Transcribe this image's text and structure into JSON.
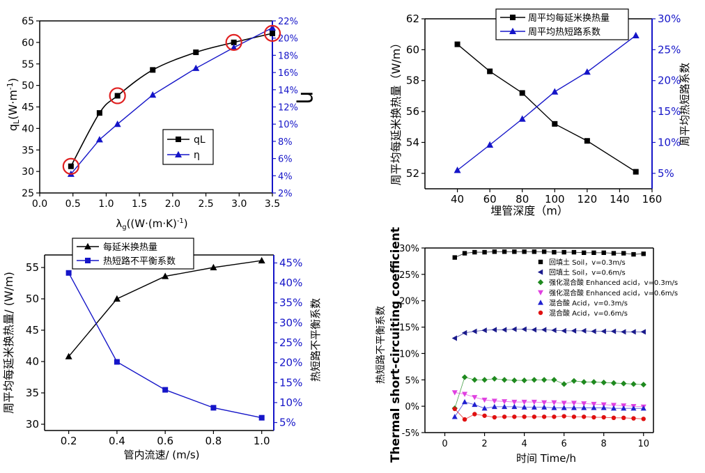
{
  "colors": {
    "black": "#000000",
    "blue": "#1515c8",
    "grid": "#000000",
    "red_circle": "#e02020"
  },
  "charts": [
    {
      "type": "line",
      "xlabel": "λg((W·(m·K)-1)",
      "ylabel_left": "qL(W·m-1)",
      "ylabel_right": "η",
      "xlim": [
        0.0,
        3.5
      ],
      "ylim_left": [
        25,
        65
      ],
      "ylim_right": [
        2,
        22
      ],
      "xticks": [
        "0.0",
        "0.5",
        "1.0",
        "1.5",
        "2.0",
        "2.5",
        "3.0",
        "3.5"
      ],
      "yticks_left": [
        "25",
        "30",
        "35",
        "40",
        "45",
        "50",
        "55",
        "60",
        "65"
      ],
      "yticks_right": [
        "2%",
        "4%",
        "6%",
        "8%",
        "10%",
        "12%",
        "14%",
        "16%",
        "18%",
        "20%",
        "22%"
      ],
      "legend": [
        "qL",
        "η"
      ],
      "series": [
        {
          "name": "qL",
          "axis": "left",
          "color": "#000000",
          "marker": "square",
          "x": [
            0.47,
            0.9,
            1.17,
            1.7,
            2.35,
            2.92,
            3.5
          ],
          "y": [
            31.2,
            43.6,
            47.6,
            53.6,
            57.7,
            60.0,
            62.1
          ]
        },
        {
          "name": "η",
          "axis": "right",
          "color": "#1515c8",
          "marker": "triangle",
          "x": [
            0.47,
            0.9,
            1.17,
            1.7,
            2.35,
            2.92,
            3.5
          ],
          "y": [
            4.2,
            8.2,
            10.0,
            13.4,
            16.5,
            18.9,
            21.2
          ]
        }
      ],
      "highlight_x": [
        0.47,
        1.17,
        2.92,
        3.5
      ],
      "highlight_y": [
        31.2,
        47.6,
        60.0,
        62.1
      ]
    },
    {
      "type": "line",
      "xlabel": "埋管深度（m）",
      "ylabel_left": "周平均每延米换热量（W/m）",
      "ylabel_right": "周平均热短路系数",
      "xlim": [
        20,
        160
      ],
      "ylim_left": [
        51,
        62
      ],
      "ylim_right": [
        2.5,
        30
      ],
      "xticks": [
        "40",
        "60",
        "80",
        "100",
        "120",
        "140",
        "160"
      ],
      "yticks_left": [
        "52",
        "54",
        "56",
        "58",
        "60",
        "62"
      ],
      "yticks_right": [
        "5%",
        "10%",
        "15%",
        "20%",
        "25%",
        "30%"
      ],
      "legend": [
        "周平均每延米换热量",
        "周平均热短路系数"
      ],
      "series": [
        {
          "name": "周平均每延米换热量",
          "axis": "left",
          "color": "#000000",
          "marker": "square",
          "x": [
            40,
            60,
            80,
            100,
            120,
            150
          ],
          "y": [
            60.35,
            58.6,
            57.2,
            55.2,
            54.1,
            52.1
          ]
        },
        {
          "name": "周平均热短路系数",
          "axis": "right",
          "color": "#1515c8",
          "marker": "triangle",
          "x": [
            40,
            60,
            80,
            100,
            120,
            150
          ],
          "y": [
            5.5,
            9.6,
            13.8,
            18.2,
            21.4,
            27.3
          ]
        }
      ]
    },
    {
      "type": "line",
      "xlabel": "管内流速/ (m/s)",
      "ylabel_left": "周平均每延米换热量/ (W/m)",
      "ylabel_right": "热短路不平衡系数",
      "xlim": [
        0.1,
        1.05
      ],
      "ylim_left": [
        29,
        57
      ],
      "ylim_right": [
        3,
        47
      ],
      "xticks": [
        "0.2",
        "0.4",
        "0.6",
        "0.8",
        "1.0"
      ],
      "yticks_left": [
        "30",
        "35",
        "40",
        "45",
        "50",
        "55"
      ],
      "yticks_right": [
        "5%",
        "10%",
        "15%",
        "20%",
        "25%",
        "30%",
        "35%",
        "40%",
        "45%"
      ],
      "legend": [
        "每延米换热量",
        "热短路不平衡系数"
      ],
      "series": [
        {
          "name": "每延米换热量",
          "axis": "left",
          "color": "#000000",
          "marker": "triangle",
          "x": [
            0.2,
            0.4,
            0.6,
            0.8,
            1.0
          ],
          "y": [
            40.8,
            50.0,
            53.6,
            55.0,
            56.1
          ]
        },
        {
          "name": "热短路不平衡系数",
          "axis": "right",
          "color": "#1515c8",
          "marker": "square",
          "x": [
            0.2,
            0.4,
            0.6,
            0.8,
            1.0
          ],
          "y": [
            42.5,
            20.2,
            13.2,
            8.7,
            6.2
          ]
        }
      ]
    },
    {
      "type": "scatter",
      "xlabel": "时间 Time/h",
      "ylabel_outer": "Thermal short-circuiting coefficient",
      "ylabel_inner": "热短路不平衡系数",
      "xlim": [
        -1.0,
        10.5
      ],
      "ylim_left": [
        -5,
        30
      ],
      "xticks": [
        "0",
        "2",
        "4",
        "6",
        "8",
        "10"
      ],
      "yticks_left": [
        "-5%",
        "0%",
        "5%",
        "10%",
        "15%",
        "20%",
        "25%",
        "30%"
      ],
      "legend_position": "top-right",
      "series": [
        {
          "name": "回填土 Soil，v=0.3m/s",
          "color": "#000000",
          "marker": "square",
          "x": [
            0.5,
            1,
            1.5,
            2,
            2.5,
            3,
            3.5,
            4,
            4.5,
            5,
            5.5,
            6,
            6.5,
            7,
            7.5,
            8,
            8.5,
            9,
            9.5,
            10
          ],
          "y": [
            28.2,
            29.0,
            29.2,
            29.2,
            29.3,
            29.3,
            29.3,
            29.3,
            29.3,
            29.3,
            29.2,
            29.2,
            29.2,
            29.1,
            29.1,
            29.1,
            29.0,
            29.0,
            28.8,
            28.9
          ]
        },
        {
          "name": "回填土 Soil，v=0.6m/s",
          "color": "#1a1a8c",
          "marker": "triangle-left",
          "x": [
            0.5,
            1,
            1.5,
            2,
            2.5,
            3,
            3.5,
            4,
            4.5,
            5,
            5.5,
            6,
            6.5,
            7,
            7.5,
            8,
            8.5,
            9,
            9.5,
            10
          ],
          "y": [
            12.9,
            13.9,
            14.2,
            14.4,
            14.5,
            14.5,
            14.6,
            14.6,
            14.5,
            14.5,
            14.4,
            14.3,
            14.3,
            14.3,
            14.2,
            14.2,
            14.2,
            14.1,
            14.1,
            14.1
          ]
        },
        {
          "name": "强化混合酸 Enhanced acid，v=0.3m/s",
          "color": "#1f8a1f",
          "marker": "diamond",
          "x": [
            0.5,
            1,
            1.5,
            2,
            2.5,
            3,
            3.5,
            4,
            4.5,
            5,
            5.5,
            6,
            6.5,
            7,
            7.5,
            8,
            8.5,
            9,
            9.5,
            10
          ],
          "y": [
            -0.4,
            5.5,
            5.0,
            5.0,
            5.2,
            5.0,
            4.9,
            4.9,
            5.0,
            5.0,
            5.0,
            4.2,
            4.8,
            4.6,
            4.6,
            4.5,
            4.4,
            4.3,
            4.2,
            4.1
          ]
        },
        {
          "name": "强化混合酸 Enhanced acid，v=0.6m/s",
          "color": "#e040e0",
          "marker": "triangle-down",
          "x": [
            0.5,
            1,
            1.5,
            2,
            2.5,
            3,
            3.5,
            4,
            4.5,
            5,
            5.5,
            6,
            6.5,
            7,
            7.5,
            8,
            8.5,
            9,
            9.5,
            10
          ],
          "y": [
            2.6,
            2.3,
            1.7,
            1.2,
            1.0,
            0.9,
            0.8,
            0.8,
            0.8,
            0.7,
            0.7,
            0.6,
            0.6,
            0.5,
            0.4,
            0.3,
            0.2,
            0.1,
            0.0,
            -0.1
          ]
        },
        {
          "name": "混合酸 Acid，v=0.3m/s",
          "color": "#2020d0",
          "marker": "triangle",
          "x": [
            0.5,
            1,
            1.5,
            2,
            2.5,
            3,
            3.5,
            4,
            4.5,
            5,
            5.5,
            6,
            6.5,
            7,
            7.5,
            8,
            8.5,
            9,
            9.5,
            10
          ],
          "y": [
            -2.0,
            0.8,
            0.3,
            -0.4,
            -0.1,
            -0.1,
            -0.1,
            -0.2,
            -0.2,
            -0.2,
            -0.3,
            -0.3,
            -0.3,
            -0.3,
            -0.3,
            -0.3,
            -0.4,
            -0.4,
            -0.4,
            -0.4
          ]
        },
        {
          "name": "混合酸 Acid，v=0.6m/s",
          "color": "#e01010",
          "marker": "circle",
          "x": [
            0.5,
            1,
            1.5,
            2,
            2.5,
            3,
            3.5,
            4,
            4.5,
            5,
            5.5,
            6,
            6.5,
            7,
            7.5,
            8,
            8.5,
            9,
            9.5,
            10
          ],
          "y": [
            -0.5,
            -2.5,
            -1.5,
            -1.8,
            -2.1,
            -2.0,
            -2.0,
            -2.0,
            -2.0,
            -2.0,
            -2.0,
            -1.9,
            -2.0,
            -2.0,
            -2.1,
            -2.1,
            -2.2,
            -2.2,
            -2.3,
            -2.4
          ]
        }
      ]
    }
  ]
}
